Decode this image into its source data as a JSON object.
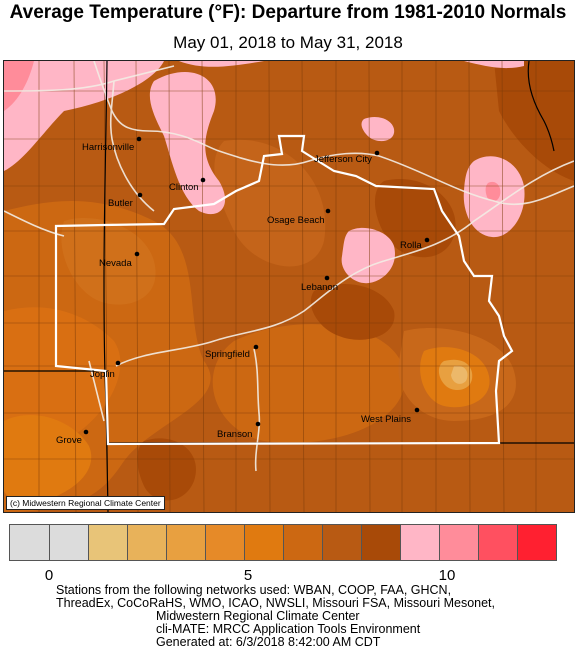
{
  "title": "Average Temperature (°F): Departure from 1981-2010 Normals",
  "subtitle": "May 01, 2018 to May 31, 2018",
  "copyright": "(c) Midwestern Regional Climate Center",
  "cities": [
    {
      "name": "Harrisonville"
    },
    {
      "name": "Clinton"
    },
    {
      "name": "Butler"
    },
    {
      "name": "Jefferson City"
    },
    {
      "name": "Osage Beach"
    },
    {
      "name": "Rolla"
    },
    {
      "name": "Nevada"
    },
    {
      "name": "Lebanon"
    },
    {
      "name": "Springfield"
    },
    {
      "name": "Joplin"
    },
    {
      "name": "West Plains"
    },
    {
      "name": "Grove"
    },
    {
      "name": "Branson"
    }
  ],
  "legend": {
    "colors": [
      "#dcdcdc",
      "#dcdcdc",
      "#e8c478",
      "#e8b25a",
      "#e8a040",
      "#e68a28",
      "#e07a10",
      "#cc6812",
      "#b85a13",
      "#a84a08",
      "#ffb6c6",
      "#ff8c9a",
      "#ff5060",
      "#ff2030"
    ],
    "ticks": [
      {
        "label": "0",
        "value": 0
      },
      {
        "label": "5",
        "value": 5
      },
      {
        "label": "10",
        "value": 10
      }
    ]
  },
  "footer": {
    "line1": "Stations from the following networks used: WBAN, COOP, FAA, GHCN,",
    "line2": "ThreadEx, CoCoRaHS, WMO, ICAO, NWSLI, Missouri FSA, Missouri Mesonet,",
    "line3": "Midwestern Regional Climate Center",
    "line4": "cli-MATE: MRCC Application Tools Environment",
    "line5": "Generated at: 6/3/2018 8:42:00 AM CDT"
  }
}
